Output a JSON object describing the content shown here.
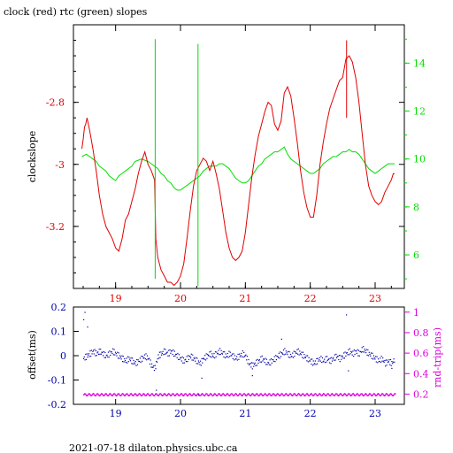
{
  "title": "clock (red) rtc (green) slopes",
  "footer": "2021-07-18  dilaton.physics.ubc.ca",
  "colors": {
    "clock": "#e00000",
    "rtc": "#00dd00",
    "offset": "#0000aa",
    "rndtrip": "#dd00dd",
    "axis": "#000000"
  },
  "chart_data": [
    {
      "type": "line",
      "title": "clock (red) rtc (green) slopes",
      "ylabel": "clockslope",
      "xlim": [
        18.35,
        23.45
      ],
      "ylim": [
        -3.4,
        -2.55
      ],
      "y2lim": [
        4.6,
        15.6
      ],
      "x_ticks": [
        "19",
        "20",
        "21",
        "22",
        "23"
      ],
      "y_ticks": [
        "-2.8",
        "-3",
        "-3.2"
      ],
      "y2_ticks": [
        "14",
        "12",
        "10",
        "8",
        "6"
      ],
      "series": [
        {
          "axis": "left",
          "x": [
            18.48,
            18.5,
            18.52,
            18.54,
            18.56,
            18.6,
            18.65,
            18.7,
            18.75,
            18.8,
            18.85,
            18.9,
            18.95,
            19.0,
            19.05,
            19.1,
            19.15,
            19.2,
            19.25,
            19.3,
            19.35,
            19.4,
            19.45,
            19.5,
            19.55,
            19.6,
            19.62,
            19.65,
            19.7,
            19.75,
            19.8,
            19.85,
            19.9,
            19.95,
            20.0,
            20.05,
            20.1,
            20.15,
            20.2,
            20.25,
            20.3,
            20.35,
            20.4,
            20.45,
            20.5,
            20.55,
            20.6,
            20.65,
            20.7,
            20.75,
            20.8,
            20.85,
            20.9,
            20.95,
            21.0,
            21.05,
            21.1,
            21.15,
            21.2,
            21.25,
            21.3,
            21.35,
            21.4,
            21.45,
            21.5,
            21.55,
            21.6,
            21.65,
            21.7,
            21.75,
            21.8,
            21.85,
            21.9,
            21.95,
            22.0,
            22.05,
            22.1,
            22.15,
            22.2,
            22.25,
            22.3,
            22.35,
            22.4,
            22.45,
            22.5,
            22.55,
            22.6,
            22.65,
            22.7,
            22.75,
            22.8,
            22.85,
            22.9,
            22.95,
            23.0,
            23.05,
            23.1,
            23.15,
            23.2,
            23.25,
            23.28,
            23.3
          ],
          "values": [
            -2.95,
            -2.92,
            -2.88,
            -2.87,
            -2.85,
            -2.89,
            -2.95,
            -3.02,
            -3.1,
            -3.16,
            -3.2,
            -3.22,
            -3.24,
            -3.27,
            -3.28,
            -3.24,
            -3.18,
            -3.16,
            -3.12,
            -3.08,
            -3.03,
            -2.99,
            -2.96,
            -3.0,
            -3.02,
            -3.05,
            -3.24,
            -3.3,
            -3.34,
            -3.36,
            -3.38,
            -3.38,
            -3.39,
            -3.38,
            -3.36,
            -3.32,
            -3.24,
            -3.15,
            -3.07,
            -3.02,
            -3.0,
            -2.98,
            -2.99,
            -3.02,
            -2.99,
            -3.03,
            -3.08,
            -3.15,
            -3.22,
            -3.27,
            -3.3,
            -3.31,
            -3.3,
            -3.28,
            -3.22,
            -3.13,
            -3.04,
            -2.97,
            -2.91,
            -2.87,
            -2.83,
            -2.8,
            -2.81,
            -2.87,
            -2.89,
            -2.86,
            -2.77,
            -2.75,
            -2.78,
            -2.85,
            -2.93,
            -3.02,
            -3.09,
            -3.14,
            -3.17,
            -3.17,
            -3.1,
            -3.0,
            -2.93,
            -2.87,
            -2.82,
            -2.79,
            -2.76,
            -2.73,
            -2.72,
            -2.66,
            -2.65,
            -2.67,
            -2.72,
            -2.8,
            -2.9,
            -3.0,
            -3.07,
            -3.1,
            -3.12,
            -3.13,
            -3.12,
            -3.09,
            -3.07,
            -3.05,
            -3.03,
            -3.03
          ]
        },
        {
          "axis": "right",
          "x": [
            18.48,
            18.55,
            18.6,
            18.65,
            18.7,
            18.75,
            18.8,
            18.85,
            18.9,
            18.95,
            19.0,
            19.05,
            19.1,
            19.15,
            19.2,
            19.25,
            19.3,
            19.35,
            19.4,
            19.45,
            19.5,
            19.55,
            19.6,
            19.65,
            19.7,
            19.75,
            19.8,
            19.85,
            19.9,
            19.95,
            20.0,
            20.05,
            20.1,
            20.15,
            20.2,
            20.25,
            20.3,
            20.35,
            20.4,
            20.45,
            20.5,
            20.55,
            20.6,
            20.65,
            20.7,
            20.75,
            20.8,
            20.85,
            20.9,
            20.95,
            21.0,
            21.05,
            21.1,
            21.15,
            21.2,
            21.25,
            21.3,
            21.35,
            21.4,
            21.45,
            21.5,
            21.55,
            21.6,
            21.65,
            21.7,
            21.75,
            21.8,
            21.85,
            21.9,
            21.95,
            22.0,
            22.05,
            22.1,
            22.15,
            22.2,
            22.25,
            22.3,
            22.35,
            22.4,
            22.45,
            22.5,
            22.55,
            22.6,
            22.65,
            22.7,
            22.75,
            22.8,
            22.85,
            22.9,
            22.95,
            23.0,
            23.05,
            23.1,
            23.15,
            23.2,
            23.25,
            23.3
          ],
          "values": [
            10.1,
            10.2,
            10.1,
            10.0,
            9.9,
            9.7,
            9.6,
            9.5,
            9.3,
            9.2,
            9.1,
            9.3,
            9.4,
            9.5,
            9.6,
            9.7,
            9.9,
            9.95,
            10.0,
            9.95,
            9.9,
            9.8,
            9.7,
            9.6,
            9.4,
            9.3,
            9.1,
            9.0,
            8.8,
            8.7,
            8.7,
            8.8,
            8.9,
            9.0,
            9.1,
            9.2,
            9.3,
            9.5,
            9.6,
            9.7,
            9.7,
            9.7,
            9.8,
            9.8,
            9.7,
            9.6,
            9.4,
            9.2,
            9.1,
            9.0,
            9.0,
            9.1,
            9.3,
            9.5,
            9.7,
            9.8,
            10.0,
            10.1,
            10.2,
            10.3,
            10.3,
            10.4,
            10.5,
            10.2,
            10.0,
            9.9,
            9.8,
            9.7,
            9.6,
            9.5,
            9.4,
            9.4,
            9.5,
            9.6,
            9.8,
            9.9,
            10.0,
            10.1,
            10.1,
            10.2,
            10.3,
            10.3,
            10.4,
            10.3,
            10.3,
            10.2,
            10.0,
            9.8,
            9.6,
            9.5,
            9.4,
            9.5,
            9.6,
            9.7,
            9.8,
            9.8,
            9.8
          ]
        }
      ],
      "spikes": [
        {
          "series": "rtc",
          "x": 19.61,
          "low": 5.0,
          "high": 15.0
        },
        {
          "series": "rtc",
          "x": 20.27,
          "low": 4.7,
          "high": 14.8
        },
        {
          "series": "clock",
          "x": 22.56,
          "low": -2.85,
          "high": -2.6
        }
      ]
    },
    {
      "type": "scatter",
      "ylabel": "offset(ms)",
      "y2label": "rnd-trip(ms)",
      "xlim": [
        18.35,
        23.45
      ],
      "ylim": [
        -0.2,
        0.2
      ],
      "y2lim": [
        0.1,
        1.05
      ],
      "x_ticks": [
        "19",
        "20",
        "21",
        "22",
        "23"
      ],
      "y_ticks": [
        "0.2",
        "0.1",
        "0",
        "-0.1",
        "-0.2"
      ],
      "y2_ticks": [
        "1",
        "0.8",
        "0.6",
        "0.4",
        "0.2"
      ],
      "offset_x": [
        18.5,
        18.55,
        18.6,
        18.65,
        18.7,
        18.75,
        18.8,
        18.85,
        18.9,
        18.95,
        19.0,
        19.05,
        19.1,
        19.15,
        19.2,
        19.25,
        19.3,
        19.35,
        19.4,
        19.45,
        19.5,
        19.55,
        19.6,
        19.65,
        19.7,
        19.75,
        19.8,
        19.85,
        19.9,
        19.95,
        20.0,
        20.05,
        20.1,
        20.15,
        20.2,
        20.25,
        20.3,
        20.35,
        20.4,
        20.45,
        20.5,
        20.55,
        20.6,
        20.65,
        20.7,
        20.75,
        20.8,
        20.85,
        20.9,
        20.95,
        21.0,
        21.05,
        21.1,
        21.15,
        21.2,
        21.25,
        21.3,
        21.35,
        21.4,
        21.45,
        21.5,
        21.55,
        21.6,
        21.65,
        21.7,
        21.75,
        21.8,
        21.85,
        21.9,
        21.95,
        22.0,
        22.05,
        22.1,
        22.15,
        22.2,
        22.25,
        22.3,
        22.35,
        22.4,
        22.45,
        22.5,
        22.55,
        22.6,
        22.65,
        22.7,
        22.75,
        22.8,
        22.85,
        22.9,
        22.95,
        23.0,
        23.05,
        23.1,
        23.15,
        23.2,
        23.25,
        23.3
      ],
      "offset_values": [
        -0.01,
        0.0,
        0.01,
        0.02,
        0.01,
        0.02,
        0.01,
        0.0,
        0.01,
        0.02,
        0.01,
        0.0,
        -0.01,
        -0.02,
        -0.01,
        -0.02,
        -0.03,
        -0.02,
        -0.01,
        0.0,
        -0.01,
        -0.04,
        -0.05,
        0.0,
        0.01,
        0.02,
        0.01,
        0.02,
        0.01,
        0.0,
        -0.01,
        -0.02,
        -0.01,
        0.0,
        -0.01,
        -0.02,
        -0.03,
        -0.01,
        0.0,
        0.01,
        0.0,
        0.01,
        0.02,
        0.01,
        0.0,
        0.01,
        0.0,
        -0.01,
        0.0,
        0.01,
        0.0,
        -0.03,
        -0.04,
        -0.03,
        -0.02,
        -0.01,
        -0.02,
        -0.03,
        -0.02,
        -0.01,
        0.0,
        0.01,
        0.02,
        0.01,
        0.0,
        0.01,
        0.02,
        0.01,
        0.0,
        -0.01,
        -0.02,
        -0.03,
        -0.02,
        -0.01,
        -0.02,
        -0.01,
        -0.02,
        -0.01,
        0.0,
        -0.01,
        0.0,
        0.01,
        0.02,
        0.01,
        0.02,
        0.01,
        0.03,
        0.02,
        0.01,
        0.0,
        -0.01,
        -0.02,
        -0.01,
        -0.03,
        -0.02,
        -0.03,
        -0.01
      ],
      "outliers_x": [
        18.5,
        18.52,
        18.56,
        19.62,
        20.27,
        20.32,
        21.1,
        21.55,
        22.55,
        22.58,
        23.25
      ],
      "outliers_values": [
        0.15,
        0.18,
        0.12,
        -0.14,
        -0.16,
        -0.09,
        -0.08,
        0.07,
        0.17,
        -0.06,
        -0.05
      ],
      "rndtrip_value": 0.2
    }
  ]
}
